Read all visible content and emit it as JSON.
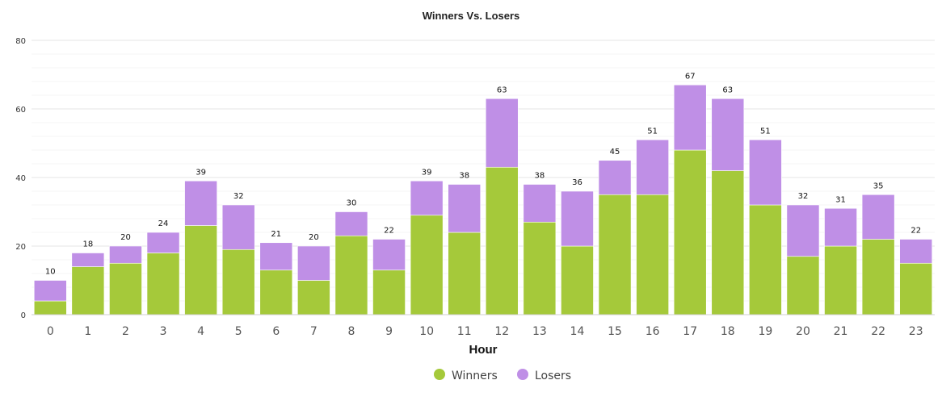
{
  "chart_data": {
    "type": "bar",
    "stacked": true,
    "title": "Winners Vs. Losers",
    "xlabel": "Hour",
    "ylabel": "",
    "ylim": [
      0,
      80
    ],
    "y_ticks": [
      0,
      20,
      40,
      60,
      80
    ],
    "grid": true,
    "legend_position": "bottom-center",
    "categories": [
      "0",
      "1",
      "2",
      "3",
      "4",
      "5",
      "6",
      "7",
      "8",
      "9",
      "10",
      "11",
      "12",
      "13",
      "14",
      "15",
      "16",
      "17",
      "18",
      "19",
      "20",
      "21",
      "22",
      "23"
    ],
    "series": [
      {
        "name": "Winners",
        "color": "#a5c93a",
        "values": [
          4,
          14,
          15,
          18,
          26,
          19,
          13,
          10,
          23,
          13,
          29,
          24,
          43,
          27,
          20,
          35,
          35,
          48,
          42,
          32,
          17,
          20,
          22,
          15
        ]
      },
      {
        "name": "Losers",
        "color": "#bf8fe6",
        "values": [
          6,
          4,
          5,
          6,
          13,
          13,
          8,
          10,
          7,
          9,
          10,
          14,
          20,
          11,
          16,
          10,
          16,
          19,
          21,
          19,
          15,
          11,
          13,
          7
        ]
      }
    ],
    "totals": [
      10,
      18,
      20,
      24,
      39,
      32,
      21,
      20,
      30,
      22,
      39,
      38,
      63,
      38,
      36,
      45,
      51,
      67,
      63,
      51,
      32,
      31,
      35,
      22
    ]
  }
}
